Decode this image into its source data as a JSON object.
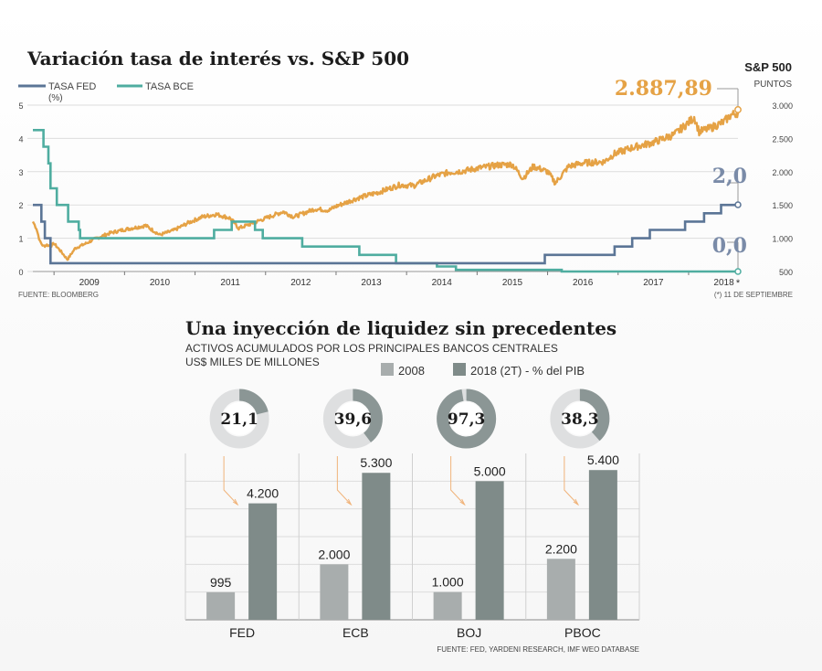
{
  "colors": {
    "fed": "#5b7596",
    "bce": "#4fada0",
    "sp": "#e5a245",
    "bar2008": "#a8adad",
    "bar2018": "#7f8b89",
    "donut_bg": "#dedfe0",
    "donut_fill": "#8b9695",
    "connector": "#f0b37a"
  },
  "chart_data": [
    {
      "type": "line",
      "title": "Variación tasa de interés vs. S&P 500",
      "left_axis_unit": "(%)",
      "right_axis_title": "S&P 500",
      "right_axis_unit": "PUNTOS",
      "left_ticks": [
        "0",
        "1",
        "2",
        "3",
        "4",
        "5"
      ],
      "right_ticks": [
        "500",
        "1.000",
        "1.500",
        "2.000",
        "2.500",
        "3.000"
      ],
      "x_ticks": [
        "2009",
        "2010",
        "2011",
        "2012",
        "2013",
        "2014",
        "2015",
        "2016",
        "2017",
        "2018"
      ],
      "xlim": [
        2008.7,
        2018.7
      ],
      "ylim_left": [
        0,
        5
      ],
      "ylim_right": [
        500,
        3000
      ],
      "annotations": {
        "sp_last": "2.887,89",
        "fed_last": "2,0",
        "bce_last": "0,0",
        "asterisk": "*"
      },
      "source": "FUENTE: BLOOMBERG",
      "footnote": "(*) 11 DE SEPTIEMBRE",
      "series": [
        {
          "name": "TASA FED",
          "axis": "left",
          "shape": "step",
          "points": [
            [
              2008.7,
              2.0
            ],
            [
              2008.82,
              1.5
            ],
            [
              2008.87,
              1.0
            ],
            [
              2008.95,
              0.25
            ],
            [
              2015.96,
              0.5
            ],
            [
              2016.95,
              0.75
            ],
            [
              2017.2,
              1.0
            ],
            [
              2017.45,
              1.25
            ],
            [
              2017.95,
              1.5
            ],
            [
              2018.22,
              1.75
            ],
            [
              2018.46,
              2.0
            ],
            [
              2018.7,
              2.0
            ]
          ]
        },
        {
          "name": "TASA BCE",
          "axis": "left",
          "shape": "step",
          "points": [
            [
              2008.7,
              4.25
            ],
            [
              2008.85,
              3.75
            ],
            [
              2008.92,
              3.25
            ],
            [
              2008.95,
              2.5
            ],
            [
              2009.04,
              2.0
            ],
            [
              2009.2,
              1.5
            ],
            [
              2009.35,
              1.25
            ],
            [
              2009.37,
              1.0
            ],
            [
              2011.27,
              1.25
            ],
            [
              2011.52,
              1.5
            ],
            [
              2011.85,
              1.25
            ],
            [
              2011.96,
              1.0
            ],
            [
              2012.52,
              0.75
            ],
            [
              2013.33,
              0.5
            ],
            [
              2013.85,
              0.25
            ],
            [
              2014.43,
              0.15
            ],
            [
              2014.7,
              0.05
            ],
            [
              2016.2,
              0.0
            ],
            [
              2018.7,
              0.0
            ]
          ]
        },
        {
          "name": "S&P 500",
          "axis": "right",
          "shape": "line",
          "points": [
            [
              2008.7,
              1250
            ],
            [
              2008.75,
              1150
            ],
            [
              2008.8,
              950
            ],
            [
              2008.85,
              880
            ],
            [
              2008.9,
              900
            ],
            [
              2008.95,
              880
            ],
            [
              2009.0,
              920
            ],
            [
              2009.1,
              800
            ],
            [
              2009.19,
              680
            ],
            [
              2009.3,
              850
            ],
            [
              2009.45,
              920
            ],
            [
              2009.6,
              1000
            ],
            [
              2009.8,
              1080
            ],
            [
              2010.0,
              1130
            ],
            [
              2010.3,
              1190
            ],
            [
              2010.5,
              1050
            ],
            [
              2010.7,
              1120
            ],
            [
              2010.9,
              1230
            ],
            [
              2011.1,
              1320
            ],
            [
              2011.3,
              1360
            ],
            [
              2011.5,
              1300
            ],
            [
              2011.62,
              1150
            ],
            [
              2011.8,
              1220
            ],
            [
              2012.0,
              1300
            ],
            [
              2012.25,
              1400
            ],
            [
              2012.4,
              1320
            ],
            [
              2012.7,
              1440
            ],
            [
              2012.9,
              1420
            ],
            [
              2013.0,
              1480
            ],
            [
              2013.3,
              1600
            ],
            [
              2013.6,
              1690
            ],
            [
              2013.9,
              1800
            ],
            [
              2014.1,
              1790
            ],
            [
              2014.4,
              1930
            ],
            [
              2014.6,
              1990
            ],
            [
              2014.8,
              2010
            ],
            [
              2015.0,
              2050
            ],
            [
              2015.3,
              2100
            ],
            [
              2015.5,
              2110
            ],
            [
              2015.65,
              1900
            ],
            [
              2015.8,
              2080
            ],
            [
              2016.0,
              2000
            ],
            [
              2016.11,
              1830
            ],
            [
              2016.3,
              2080
            ],
            [
              2016.5,
              2130
            ],
            [
              2016.8,
              2150
            ],
            [
              2016.95,
              2270
            ],
            [
              2017.2,
              2360
            ],
            [
              2017.5,
              2440
            ],
            [
              2017.8,
              2560
            ],
            [
              2018.0,
              2740
            ],
            [
              2018.08,
              2820
            ],
            [
              2018.15,
              2600
            ],
            [
              2018.3,
              2650
            ],
            [
              2018.5,
              2750
            ],
            [
              2018.6,
              2850
            ],
            [
              2018.7,
              2887.89
            ]
          ]
        }
      ]
    },
    {
      "type": "bar",
      "title": "Una inyección de liquidez sin precedentes",
      "subtitle": [
        "ACTIVOS ACUMULADOS POR LOS PRINCIPALES BANCOS CENTRALES",
        "US$ MILES DE MILLONES"
      ],
      "categories": [
        "FED",
        "ECB",
        "BOJ",
        "PBOC"
      ],
      "ylim": [
        0,
        6000
      ],
      "series": [
        {
          "name": "2008",
          "values": [
            995,
            2000,
            1000,
            2200
          ],
          "labels": [
            "995",
            "2.000",
            "1.000",
            "2.200"
          ]
        },
        {
          "name": "2018 (2T) - % del PIB",
          "values": [
            4200,
            5300,
            5000,
            5400
          ],
          "labels": [
            "4.200",
            "5.300",
            "5.000",
            "5.400"
          ]
        }
      ],
      "pct_gdp": [
        21.1,
        39.6,
        97.3,
        38.3
      ],
      "pct_gdp_labels": [
        "21,1",
        "39,6",
        "97,3",
        "38,3"
      ],
      "source": "FUENTE: FED, YARDENI RESEARCH, IMF WEO DATABASE"
    }
  ]
}
